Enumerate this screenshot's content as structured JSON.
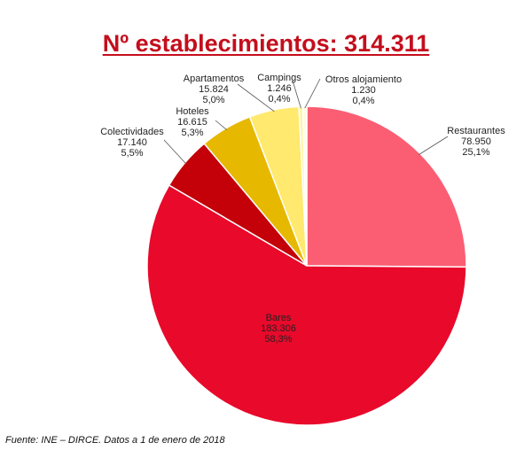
{
  "title": "Nº establecimientos: 314.311",
  "title_color": "#c40e1c",
  "source": "Fuente: INE – DIRCE. Datos a 1 de enero de 2018",
  "chart_data": {
    "type": "pie",
    "title": "Nº establecimientos: 314.311",
    "total": 314311,
    "slices": [
      {
        "label": "Restaurantes",
        "value": 78950,
        "value_text": "78.950",
        "percent_text": "25,1%",
        "color": "#fb5e73"
      },
      {
        "label": "Bares",
        "value": 183306,
        "value_text": "183.306",
        "percent_text": "58,3%",
        "color": "#e8092b"
      },
      {
        "label": "Colectividades",
        "value": 17140,
        "value_text": "17.140",
        "percent_text": "5,5%",
        "color": "#c40008"
      },
      {
        "label": "Hoteles",
        "value": 16615,
        "value_text": "16.615",
        "percent_text": "5,3%",
        "color": "#e6b800"
      },
      {
        "label": "Apartamentos",
        "value": 15824,
        "value_text": "15.824",
        "percent_text": "5,0%",
        "color": "#ffe96e"
      },
      {
        "label": "Campings",
        "value": 1246,
        "value_text": "1.246",
        "percent_text": "0,4%",
        "color": "#fff3a8"
      },
      {
        "label": "Otros alojamiento",
        "value": 1230,
        "value_text": "1.230",
        "percent_text": "0,4%",
        "color": "#fffbe0"
      }
    ]
  }
}
